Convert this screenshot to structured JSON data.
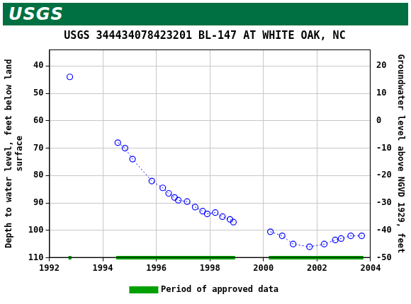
{
  "header": {
    "logo": "USGS"
  },
  "chart_data": {
    "type": "scatter",
    "title": "USGS 344434078423201 BL-147 AT WHITE OAK, NC",
    "y_label": "Depth to water level, feet below land surface",
    "y2_label": "Groundwater level above NGVD 1929, feet",
    "xlim": [
      1992,
      2004
    ],
    "xticks": [
      1992,
      1994,
      1996,
      1998,
      2000,
      2002,
      2004
    ],
    "ylim": [
      110,
      34
    ],
    "yticks": [
      40,
      50,
      60,
      70,
      80,
      90,
      100,
      110
    ],
    "y2lim": [
      -50,
      26
    ],
    "y2ticks": [
      20,
      10,
      0,
      -10,
      -20,
      -30,
      -40,
      -50
    ],
    "grid": true,
    "legend": "bottom",
    "series": [
      {
        "color": "#0000ff",
        "marker": "circle",
        "line_style": "dotted",
        "x": [
          1992.77,
          null,
          1994.56,
          1994.83,
          1995.11,
          1995.83,
          1996.24,
          1996.46,
          1996.68,
          1996.82,
          1997.15,
          1997.45,
          1997.73,
          1997.9,
          1998.2,
          1998.47,
          1998.75,
          1998.88,
          null,
          2000.26,
          2000.7,
          2001.11,
          2001.72,
          2002.27,
          2002.68,
          2002.9,
          2003.26,
          2003.67
        ],
        "values": [
          44,
          null,
          68,
          70,
          74,
          82,
          84.5,
          86.5,
          88,
          89,
          89.5,
          91.5,
          93,
          94,
          93.5,
          95,
          96,
          97,
          null,
          100.5,
          102,
          105,
          106,
          105,
          103.5,
          103,
          102,
          102
        ]
      }
    ],
    "approved_periods": {
      "name": "Period of approved data",
      "color": "#00a000",
      "value": 110,
      "periods": [
        [
          1992.72,
          1992.83
        ],
        [
          1994.5,
          1998.94
        ],
        [
          2000.2,
          2003.73
        ]
      ]
    }
  }
}
